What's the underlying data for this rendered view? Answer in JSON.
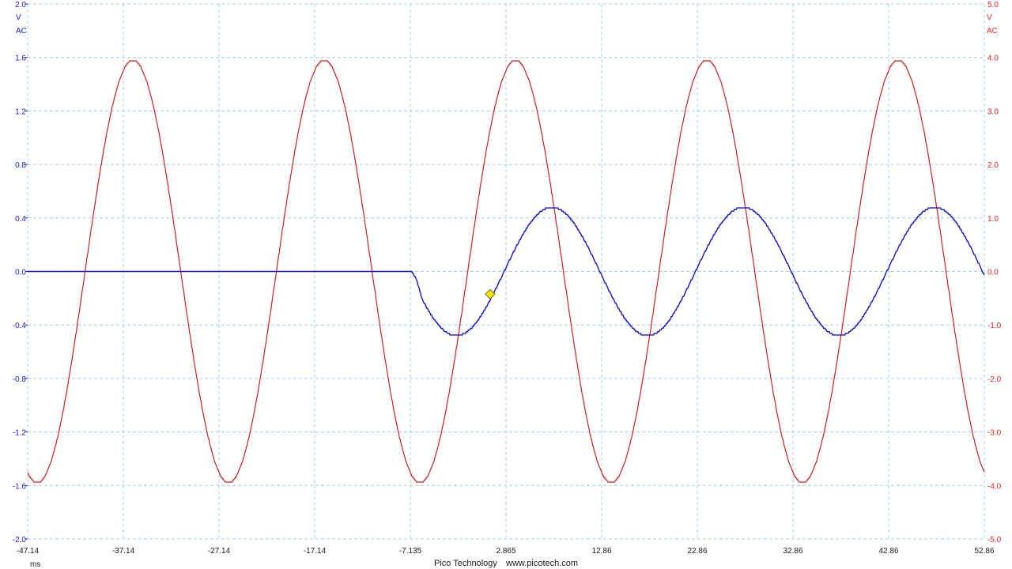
{
  "chart_data": {
    "type": "line",
    "xaxis": {
      "unit": "ms",
      "ticks": [
        "-47.14",
        "-37.14",
        "-27.14",
        "-17.14",
        "-7.135",
        "2.865",
        "12.86",
        "22.86",
        "32.86",
        "42.86",
        "52.86"
      ],
      "range": [
        -47.14,
        52.86
      ]
    },
    "left_axis": {
      "unit": "V",
      "coupling": "AC",
      "color": "#1a1ad0",
      "range": [
        -2.0,
        2.0
      ],
      "ticks": [
        "2.0",
        "1.6",
        "1.2",
        "0.8",
        "0.4",
        "0.0",
        "-0.4",
        "-0.8",
        "-1.2",
        "-1.6",
        "-2.0"
      ]
    },
    "right_axis": {
      "unit": "V",
      "coupling": "AC",
      "color": "#e02424",
      "range": [
        -5.0,
        5.0
      ],
      "ticks": [
        "5.0",
        "4.0",
        "3.0",
        "2.0",
        "1.0",
        "0.0",
        "-1.0",
        "-2.0",
        "-3.0",
        "-4.0",
        "-5.0"
      ]
    },
    "grid": true,
    "series": [
      {
        "axis": "right",
        "color": "#cc2020",
        "shape": "sine",
        "amplitude": 3.95,
        "period_ms": 20,
        "peak_at_ms": -36.14,
        "start_ms": -47.14,
        "end_ms": 52.86
      },
      {
        "axis": "left",
        "color": "#1515c8",
        "shape": "sine",
        "amplitude": 0.48,
        "period_ms": 20,
        "starts_at_ms": -7.135,
        "first_trough_ms": -2.335,
        "start_ms": -47.14,
        "end_ms": 52.86
      }
    ],
    "trigger": {
      "x_ms": 1.2,
      "y_v": -0.17,
      "color": "#f5e400"
    }
  },
  "footer": {
    "brand": "Pico Technology",
    "url": "www.picotech.com"
  }
}
